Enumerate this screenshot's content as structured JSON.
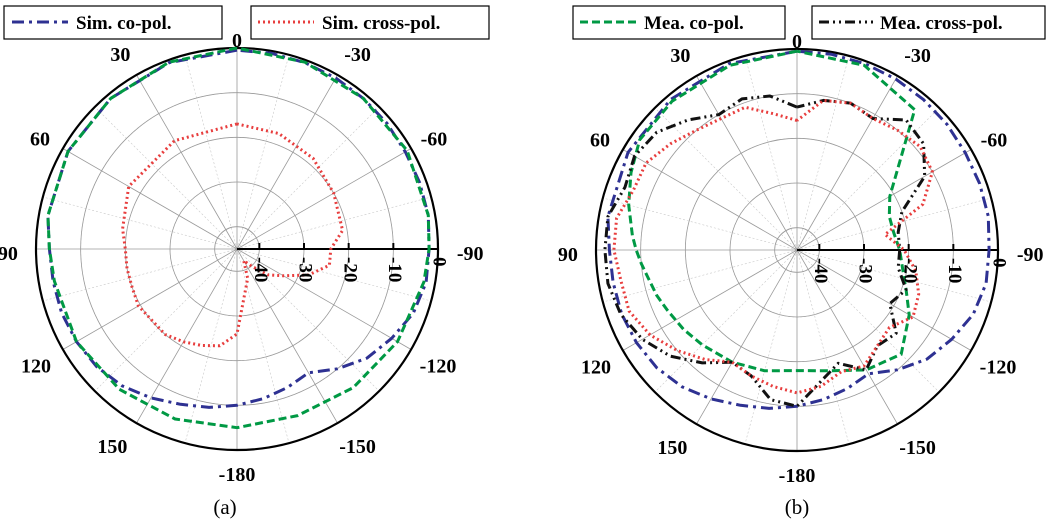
{
  "chart_data": [
    {
      "type": "polar",
      "caption": "(a)",
      "angle_labels": [
        "0",
        "-30",
        "-60",
        "-90",
        "-120",
        "-150",
        "-180",
        "150",
        "120",
        "90",
        "60",
        "30"
      ],
      "radial_ticks": [
        "-40",
        "-30",
        "-20",
        "-10",
        "0"
      ],
      "rlim": [
        -45,
        0
      ],
      "grid": true,
      "legend_placement": "top",
      "series": [
        {
          "name": "Sim. co-pol.",
          "color": "#2e3192",
          "dash": "dash-dot",
          "theta": [
            0,
            20,
            40,
            60,
            80,
            90,
            100,
            110,
            120,
            130,
            140,
            150,
            160,
            170,
            180,
            190,
            200,
            210,
            220,
            230,
            240,
            250,
            260,
            270,
            280,
            290,
            300,
            310,
            320,
            330,
            340,
            350,
            360
          ],
          "r": [
            -0.5,
            -0.6,
            -1,
            -1.3,
            -2,
            -3,
            -3.2,
            -3.2,
            -3.5,
            -4,
            -5,
            -6.5,
            -8,
            -9,
            -10,
            -11,
            -12,
            -13,
            -10,
            -7,
            -5,
            -3,
            -2,
            -2,
            -1.5,
            -1.5,
            -1.5,
            -1.2,
            -1,
            -0.8,
            -0.6,
            -0.5,
            -0.5
          ]
        },
        {
          "name": "Sim. cross-pol.",
          "color": "#e83e3e",
          "dash": "dot",
          "theta": [
            0,
            30,
            60,
            80,
            90,
            100,
            110,
            120,
            140,
            150,
            160,
            170,
            180,
            200,
            210,
            220,
            230,
            240,
            250,
            260,
            270,
            280,
            300,
            320,
            340,
            360
          ],
          "r": [
            -17,
            -17,
            -17,
            -19,
            -20,
            -20,
            -20,
            -19.5,
            -20,
            -21,
            -22,
            -23,
            -26,
            -38,
            -42,
            -40,
            -36,
            -33,
            -28,
            -24,
            -24,
            -21,
            -20,
            -18.5,
            -17.5,
            -17
          ]
        },
        {
          "name": "Mea. co-pol.",
          "color": "#009944",
          "dash": "dash",
          "theta": [
            0,
            20,
            40,
            60,
            80,
            90,
            100,
            120,
            140,
            160,
            180,
            200,
            220,
            240,
            260,
            270,
            280,
            300,
            320,
            340,
            360
          ],
          "r": [
            0,
            -0.5,
            -1,
            -1.3,
            -2,
            -3,
            -3.5,
            -3.5,
            -4,
            -4.5,
            -5,
            -5.3,
            -4.5,
            -3.5,
            -2.5,
            -2,
            -1.5,
            -1,
            -1,
            -0.5,
            0
          ]
        }
      ]
    },
    {
      "type": "polar",
      "caption": "(b)",
      "angle_labels": [
        "0",
        "-30",
        "-60",
        "-90",
        "-120",
        "-150",
        "-180",
        "150",
        "120",
        "90",
        "60",
        "30"
      ],
      "radial_ticks": [
        "-40",
        "-30",
        "-20",
        "-10",
        "0"
      ],
      "rlim": [
        -45,
        0
      ],
      "grid": true,
      "legend_placement": "top",
      "series": [
        {
          "name": "Sim. co-pol.",
          "color": "#2e3192",
          "dash": "dash-dot",
          "theta": [
            0,
            20,
            40,
            60,
            80,
            90,
            100,
            110,
            120,
            130,
            140,
            150,
            160,
            170,
            180,
            190,
            200,
            210,
            220,
            230,
            240,
            250,
            260,
            270,
            280,
            290,
            300,
            310,
            320,
            330,
            340,
            350,
            360
          ],
          "r": [
            -0.5,
            -0.6,
            -1,
            -1.3,
            -2,
            -3,
            -3.2,
            -3.2,
            -3.5,
            -4,
            -5,
            -6.5,
            -8,
            -9,
            -10,
            -11,
            -12,
            -13,
            -10,
            -7,
            -5,
            -3,
            -2,
            -2,
            -1.5,
            -1.5,
            -1.5,
            -1.2,
            -1,
            -0.8,
            -0.6,
            -0.5,
            -0.5
          ]
        },
        {
          "name": "Mea. co-pol.",
          "color": "#009944",
          "dash": "dash",
          "theta": [
            0,
            20,
            40,
            55,
            65,
            75,
            85,
            90,
            95,
            100,
            108,
            115,
            125,
            135,
            150,
            165,
            180,
            195,
            210,
            225,
            240,
            250,
            260,
            270,
            280,
            290,
            300,
            320,
            340,
            360
          ],
          "r": [
            -0.5,
            -1,
            -1.5,
            -2,
            -4,
            -6,
            -8,
            -9,
            -10,
            -11,
            -12,
            -13,
            -14,
            -15,
            -16,
            -17,
            -18,
            -17,
            -14,
            -12,
            -16,
            -19,
            -21,
            -22,
            -23,
            -23,
            -21,
            -4,
            -1,
            -0.5
          ]
        },
        {
          "name": "Mea. cross-pol.",
          "color": "#111111",
          "dash": "dash-dot-dot",
          "theta": [
            0,
            10,
            20,
            30,
            40,
            50,
            60,
            70,
            80,
            90,
            100,
            110,
            120,
            130,
            140,
            150,
            160,
            170,
            180,
            190,
            200,
            210,
            220,
            230,
            240,
            250,
            260,
            270,
            280,
            290,
            300,
            310,
            320,
            330,
            340,
            350,
            360
          ],
          "r": [
            -13,
            -10,
            -9,
            -10,
            -7,
            -4,
            -3,
            -4,
            -2,
            -2,
            -2,
            -3,
            -5,
            -8,
            -12,
            -16,
            -15,
            -11,
            -10,
            -15,
            -18,
            -14,
            -17,
            -16,
            -21,
            -19,
            -22,
            -22,
            -22,
            -20,
            -12,
            -8,
            -7,
            -11,
            -10,
            -11,
            -13
          ]
        },
        {
          "name": "Sim. cross-pol.",
          "color": "#e83e3e",
          "dash": "dot",
          "theta": [
            0,
            10,
            20,
            30,
            40,
            50,
            60,
            70,
            80,
            90,
            100,
            110,
            120,
            130,
            140,
            150,
            160,
            170,
            180,
            190,
            200,
            210,
            220,
            230,
            240,
            250,
            260,
            270,
            280,
            290,
            300,
            310,
            320,
            330,
            340,
            350,
            360
          ],
          "r": [
            -16,
            -14,
            -11,
            -11,
            -10,
            -8,
            -6,
            -6,
            -4,
            -4,
            -5,
            -5,
            -7,
            -10,
            -13,
            -16,
            -15,
            -14,
            -13,
            -14,
            -16,
            -15,
            -17,
            -18,
            -15,
            -16,
            -18,
            -21,
            -25,
            -15,
            -10,
            -9,
            -10,
            -11,
            -10,
            -11,
            -16
          ]
        }
      ]
    }
  ],
  "legends": {
    "a": [
      "Sim. co-pol.",
      "Sim. cross-pol."
    ],
    "b": [
      "Mea. co-pol.",
      "Mea. cross-pol."
    ]
  }
}
